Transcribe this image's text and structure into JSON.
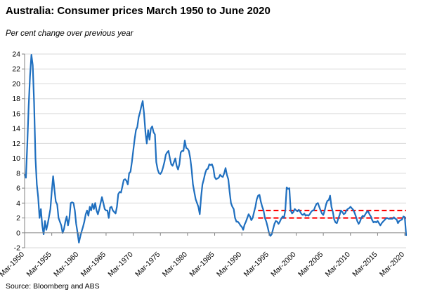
{
  "header": {
    "title": "Australia: Consumer prices March 1950 to June 2020",
    "subtitle": "Per cent change over previous year"
  },
  "footer": {
    "source": "Source: Bloomberg and ABS"
  },
  "colors": {
    "series": "#1f6fbf",
    "band": "#ff0000",
    "axis": "#808080",
    "grid": "#d9d9d9"
  },
  "chart_data": {
    "type": "line",
    "title": "Australia: Consumer prices March 1950 to June 2020",
    "subtitle": "Per cent change over previous year",
    "xlabel": "",
    "ylabel": "",
    "ylim": [
      -2,
      24
    ],
    "yticks": [
      -2,
      0,
      2,
      4,
      6,
      8,
      10,
      12,
      14,
      16,
      18,
      20,
      22,
      24
    ],
    "xlim": [
      1950.0,
      2020.25
    ],
    "xticks": [
      {
        "x": 1950,
        "label": "Mar-1950"
      },
      {
        "x": 1955,
        "label": "Mar-1955"
      },
      {
        "x": 1960,
        "label": "Mar-1960"
      },
      {
        "x": 1965,
        "label": "Mar-1965"
      },
      {
        "x": 1970,
        "label": "Mar-1970"
      },
      {
        "x": 1975,
        "label": "Mar-1975"
      },
      {
        "x": 1980,
        "label": "Mar-1980"
      },
      {
        "x": 1985,
        "label": "Mar-1985"
      },
      {
        "x": 1990,
        "label": "Mar-1990"
      },
      {
        "x": 1995,
        "label": "Mar-1995"
      },
      {
        "x": 2000,
        "label": "Mar-2000"
      },
      {
        "x": 2005,
        "label": "Mar-2005"
      },
      {
        "x": 2010,
        "label": "Mar-2010"
      },
      {
        "x": 2015,
        "label": "Mar-2015"
      },
      {
        "x": 2020,
        "label": "Mar-2020"
      }
    ],
    "grid": "horizontal",
    "legend": "none",
    "series": [
      {
        "points": [
          [
            1950.0,
            7.8
          ],
          [
            1950.25,
            7.4
          ],
          [
            1950.5,
            12.0
          ],
          [
            1950.75,
            17.0
          ],
          [
            1951.0,
            21.0
          ],
          [
            1951.25,
            23.9
          ],
          [
            1951.5,
            22.5
          ],
          [
            1951.75,
            17.5
          ],
          [
            1952.0,
            10.0
          ],
          [
            1952.25,
            6.5
          ],
          [
            1952.5,
            4.8
          ],
          [
            1952.75,
            2.0
          ],
          [
            1953.0,
            3.2
          ],
          [
            1953.25,
            1.0
          ],
          [
            1953.5,
            -0.2
          ],
          [
            1953.75,
            1.6
          ],
          [
            1954.0,
            0.4
          ],
          [
            1954.25,
            1.2
          ],
          [
            1954.5,
            2.2
          ],
          [
            1954.75,
            3.2
          ],
          [
            1955.0,
            5.5
          ],
          [
            1955.25,
            7.6
          ],
          [
            1955.5,
            5.8
          ],
          [
            1955.75,
            4.2
          ],
          [
            1956.0,
            3.8
          ],
          [
            1956.25,
            2.0
          ],
          [
            1956.5,
            1.5
          ],
          [
            1956.75,
            1.0
          ],
          [
            1957.0,
            0.0
          ],
          [
            1957.25,
            0.5
          ],
          [
            1957.5,
            1.5
          ],
          [
            1957.75,
            2.2
          ],
          [
            1958.0,
            1.0
          ],
          [
            1958.25,
            2.0
          ],
          [
            1958.5,
            4.0
          ],
          [
            1958.75,
            4.1
          ],
          [
            1959.0,
            4.0
          ],
          [
            1959.25,
            3.0
          ],
          [
            1959.5,
            1.2
          ],
          [
            1959.75,
            0.0
          ],
          [
            1960.0,
            -1.3
          ],
          [
            1960.25,
            -0.5
          ],
          [
            1960.5,
            0.2
          ],
          [
            1960.75,
            0.8
          ],
          [
            1961.0,
            1.5
          ],
          [
            1961.25,
            2.5
          ],
          [
            1961.5,
            3.0
          ],
          [
            1961.75,
            2.3
          ],
          [
            1962.0,
            3.5
          ],
          [
            1962.25,
            3.0
          ],
          [
            1962.5,
            3.9
          ],
          [
            1962.75,
            3.2
          ],
          [
            1963.0,
            4.0
          ],
          [
            1963.25,
            3.0
          ],
          [
            1963.5,
            2.5
          ],
          [
            1963.75,
            3.2
          ],
          [
            1964.0,
            4.0
          ],
          [
            1964.25,
            4.8
          ],
          [
            1964.5,
            4.0
          ],
          [
            1964.75,
            3.2
          ],
          [
            1965.0,
            3.0
          ],
          [
            1965.25,
            3.0
          ],
          [
            1965.5,
            2.0
          ],
          [
            1965.75,
            3.4
          ],
          [
            1966.0,
            3.5
          ],
          [
            1966.25,
            3.0
          ],
          [
            1966.5,
            2.8
          ],
          [
            1966.75,
            2.6
          ],
          [
            1967.0,
            3.5
          ],
          [
            1967.25,
            5.2
          ],
          [
            1967.5,
            5.5
          ],
          [
            1967.75,
            5.4
          ],
          [
            1968.0,
            6.2
          ],
          [
            1968.25,
            7.1
          ],
          [
            1968.5,
            7.2
          ],
          [
            1968.75,
            7.0
          ],
          [
            1969.0,
            6.5
          ],
          [
            1969.25,
            8.0
          ],
          [
            1969.5,
            8.2
          ],
          [
            1969.75,
            9.5
          ],
          [
            1970.0,
            11.0
          ],
          [
            1970.25,
            12.5
          ],
          [
            1970.5,
            13.8
          ],
          [
            1970.75,
            14.2
          ],
          [
            1971.0,
            15.5
          ],
          [
            1971.25,
            16.2
          ],
          [
            1971.5,
            17.0
          ],
          [
            1971.75,
            17.7
          ],
          [
            1972.0,
            16.0
          ],
          [
            1972.25,
            13.5
          ],
          [
            1972.5,
            12.0
          ],
          [
            1972.75,
            13.8
          ],
          [
            1973.0,
            12.5
          ],
          [
            1973.25,
            14.0
          ],
          [
            1973.5,
            14.3
          ],
          [
            1973.75,
            13.5
          ],
          [
            1974.0,
            13.2
          ],
          [
            1974.25,
            9.5
          ],
          [
            1974.5,
            8.5
          ],
          [
            1974.75,
            8.0
          ],
          [
            1975.0,
            7.9
          ],
          [
            1975.25,
            8.2
          ],
          [
            1975.5,
            8.8
          ],
          [
            1975.75,
            9.5
          ],
          [
            1976.0,
            10.5
          ],
          [
            1976.25,
            10.8
          ],
          [
            1976.5,
            11.0
          ],
          [
            1976.75,
            10.0
          ],
          [
            1977.0,
            9.2
          ],
          [
            1977.25,
            9.0
          ],
          [
            1977.5,
            9.5
          ],
          [
            1977.75,
            10.0
          ],
          [
            1978.0,
            9.0
          ],
          [
            1978.25,
            8.5
          ],
          [
            1978.5,
            9.2
          ],
          [
            1978.75,
            10.8
          ],
          [
            1979.0,
            11.0
          ],
          [
            1979.25,
            11.0
          ],
          [
            1979.5,
            12.4
          ],
          [
            1979.75,
            11.4
          ],
          [
            1980.0,
            11.3
          ],
          [
            1980.25,
            11.0
          ],
          [
            1980.5,
            10.0
          ],
          [
            1980.75,
            8.5
          ],
          [
            1981.0,
            6.5
          ],
          [
            1981.25,
            5.5
          ],
          [
            1981.5,
            4.5
          ],
          [
            1981.75,
            4.0
          ],
          [
            1982.0,
            3.5
          ],
          [
            1982.25,
            2.5
          ],
          [
            1982.5,
            4.8
          ],
          [
            1982.75,
            6.5
          ],
          [
            1983.0,
            7.2
          ],
          [
            1983.25,
            8.0
          ],
          [
            1983.5,
            8.5
          ],
          [
            1983.75,
            8.6
          ],
          [
            1984.0,
            9.2
          ],
          [
            1984.25,
            9.1
          ],
          [
            1984.5,
            9.2
          ],
          [
            1984.75,
            8.7
          ],
          [
            1985.0,
            7.5
          ],
          [
            1985.25,
            7.2
          ],
          [
            1985.5,
            7.3
          ],
          [
            1985.75,
            7.4
          ],
          [
            1986.0,
            7.8
          ],
          [
            1986.25,
            7.6
          ],
          [
            1986.5,
            7.5
          ],
          [
            1986.75,
            8.0
          ],
          [
            1987.0,
            8.7
          ],
          [
            1987.25,
            7.8
          ],
          [
            1987.5,
            7.2
          ],
          [
            1987.75,
            5.5
          ],
          [
            1988.0,
            4.0
          ],
          [
            1988.25,
            3.5
          ],
          [
            1988.5,
            3.2
          ],
          [
            1988.75,
            2.0
          ],
          [
            1989.0,
            1.5
          ],
          [
            1989.25,
            1.5
          ],
          [
            1989.5,
            1.3
          ],
          [
            1989.75,
            1.0
          ],
          [
            1990.0,
            0.8
          ],
          [
            1990.25,
            0.4
          ],
          [
            1990.5,
            1.1
          ],
          [
            1990.75,
            1.5
          ],
          [
            1991.0,
            2.0
          ],
          [
            1991.25,
            2.5
          ],
          [
            1991.5,
            2.2
          ],
          [
            1991.75,
            1.7
          ],
          [
            1992.0,
            2.0
          ],
          [
            1992.25,
            2.8
          ],
          [
            1992.5,
            3.5
          ],
          [
            1992.75,
            4.5
          ],
          [
            1993.0,
            5.0
          ],
          [
            1993.25,
            5.1
          ],
          [
            1993.5,
            4.2
          ],
          [
            1993.75,
            3.5
          ],
          [
            1994.0,
            3.0
          ],
          [
            1994.25,
            2.0
          ],
          [
            1994.5,
            1.5
          ],
          [
            1994.75,
            0.8
          ],
          [
            1995.0,
            0.0
          ],
          [
            1995.25,
            -0.4
          ],
          [
            1995.5,
            -0.2
          ],
          [
            1995.75,
            0.5
          ],
          [
            1996.0,
            1.2
          ],
          [
            1996.25,
            1.6
          ],
          [
            1996.5,
            1.5
          ],
          [
            1996.75,
            1.2
          ],
          [
            1997.0,
            1.5
          ],
          [
            1997.25,
            1.9
          ],
          [
            1997.5,
            2.2
          ],
          [
            1997.75,
            2.0
          ],
          [
            1998.0,
            3.0
          ],
          [
            1998.25,
            6.1
          ],
          [
            1998.5,
            5.9
          ],
          [
            1998.75,
            6.0
          ],
          [
            1999.0,
            3.0
          ],
          [
            1999.25,
            2.6
          ],
          [
            1999.5,
            2.8
          ],
          [
            1999.75,
            3.2
          ],
          [
            2000.0,
            3.0
          ],
          [
            2000.25,
            2.9
          ],
          [
            2000.5,
            3.1
          ],
          [
            2000.75,
            2.8
          ],
          [
            2001.0,
            2.5
          ],
          [
            2001.25,
            2.4
          ],
          [
            2001.5,
            2.6
          ],
          [
            2001.75,
            2.3
          ],
          [
            2002.0,
            2.4
          ],
          [
            2002.25,
            2.3
          ],
          [
            2002.5,
            2.5
          ],
          [
            2002.75,
            2.8
          ],
          [
            2003.0,
            3.0
          ],
          [
            2003.25,
            3.0
          ],
          [
            2003.5,
            3.5
          ],
          [
            2003.75,
            3.9
          ],
          [
            2004.0,
            4.0
          ],
          [
            2004.25,
            3.5
          ],
          [
            2004.5,
            3.0
          ],
          [
            2004.75,
            2.6
          ],
          [
            2005.0,
            2.4
          ],
          [
            2005.25,
            3.0
          ],
          [
            2005.5,
            3.8
          ],
          [
            2005.75,
            4.3
          ],
          [
            2006.0,
            4.4
          ],
          [
            2006.25,
            5.0
          ],
          [
            2006.5,
            3.5
          ],
          [
            2006.75,
            2.8
          ],
          [
            2007.0,
            1.8
          ],
          [
            2007.25,
            1.4
          ],
          [
            2007.5,
            1.3
          ],
          [
            2007.75,
            1.9
          ],
          [
            2008.0,
            2.4
          ],
          [
            2008.25,
            3.0
          ],
          [
            2008.5,
            2.8
          ],
          [
            2008.75,
            2.5
          ],
          [
            2009.0,
            2.6
          ],
          [
            2009.25,
            3.0
          ],
          [
            2009.5,
            3.2
          ],
          [
            2009.75,
            3.3
          ],
          [
            2010.0,
            3.5
          ],
          [
            2010.25,
            3.3
          ],
          [
            2010.5,
            3.1
          ],
          [
            2010.75,
            2.7
          ],
          [
            2011.0,
            2.2
          ],
          [
            2011.25,
            1.6
          ],
          [
            2011.5,
            1.2
          ],
          [
            2011.75,
            1.5
          ],
          [
            2012.0,
            2.0
          ],
          [
            2012.25,
            2.3
          ],
          [
            2012.5,
            2.2
          ],
          [
            2012.75,
            2.5
          ],
          [
            2013.0,
            2.8
          ],
          [
            2013.25,
            2.9
          ],
          [
            2013.5,
            2.5
          ],
          [
            2013.75,
            2.2
          ],
          [
            2014.0,
            1.7
          ],
          [
            2014.25,
            1.4
          ],
          [
            2014.5,
            1.5
          ],
          [
            2014.75,
            1.4
          ],
          [
            2015.0,
            1.6
          ],
          [
            2015.25,
            1.3
          ],
          [
            2015.5,
            1.0
          ],
          [
            2015.75,
            1.3
          ],
          [
            2016.0,
            1.5
          ],
          [
            2016.25,
            1.7
          ],
          [
            2016.5,
            1.9
          ],
          [
            2016.75,
            2.0
          ],
          [
            2017.0,
            1.9
          ],
          [
            2017.25,
            1.9
          ],
          [
            2017.5,
            1.9
          ],
          [
            2017.75,
            1.9
          ],
          [
            2018.0,
            2.1
          ],
          [
            2018.25,
            1.9
          ],
          [
            2018.5,
            1.8
          ],
          [
            2018.75,
            1.3
          ],
          [
            2019.0,
            1.6
          ],
          [
            2019.25,
            1.7
          ],
          [
            2019.5,
            1.8
          ],
          [
            2019.75,
            2.2
          ],
          [
            2020.0,
            2.1
          ],
          [
            2020.25,
            -0.3
          ]
        ]
      }
    ],
    "target_band": {
      "lower": 2,
      "upper": 3,
      "x_start": 1993.0,
      "x_end": 2020.25
    }
  }
}
